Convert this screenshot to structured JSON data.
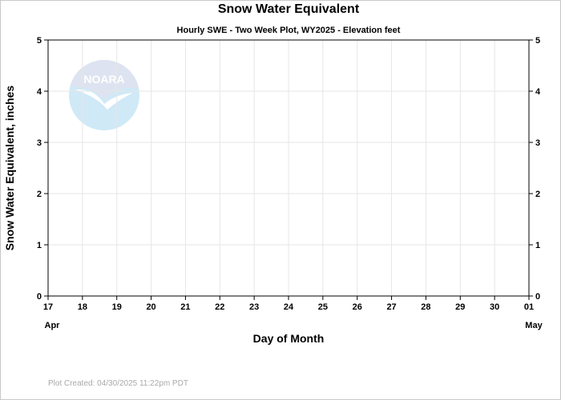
{
  "chart_data": {
    "type": "line",
    "title": "Snow Water Equivalent",
    "subtitle": "Hourly SWE - Two Week Plot, WY2025 -  Elevation  feet",
    "xlabel": "Day of Month",
    "ylabel": "Snow Water Equivalent, inches",
    "x_ticks": [
      "17",
      "18",
      "19",
      "20",
      "21",
      "22",
      "23",
      "24",
      "25",
      "26",
      "27",
      "28",
      "29",
      "30",
      "01"
    ],
    "x_month_labels": [
      {
        "text": "Apr",
        "tick_index": 0
      },
      {
        "text": "May",
        "tick_index": 14
      }
    ],
    "y_ticks": [
      "0",
      "1",
      "2",
      "3",
      "4",
      "5"
    ],
    "ylim": [
      0,
      5
    ],
    "grid": true,
    "right_axis": true,
    "series": []
  },
  "logo": {
    "text": "NOARA",
    "colors": {
      "top": "#dde3f0",
      "bottom": "#cfe9f7",
      "bird": "#ffffff"
    }
  },
  "footer": {
    "created": "Plot Created: 04/30/2025 11:22pm PDT"
  },
  "colors": {
    "grid": "#e6e6e6",
    "axis": "#000000",
    "footer": "#a9a9a9"
  }
}
